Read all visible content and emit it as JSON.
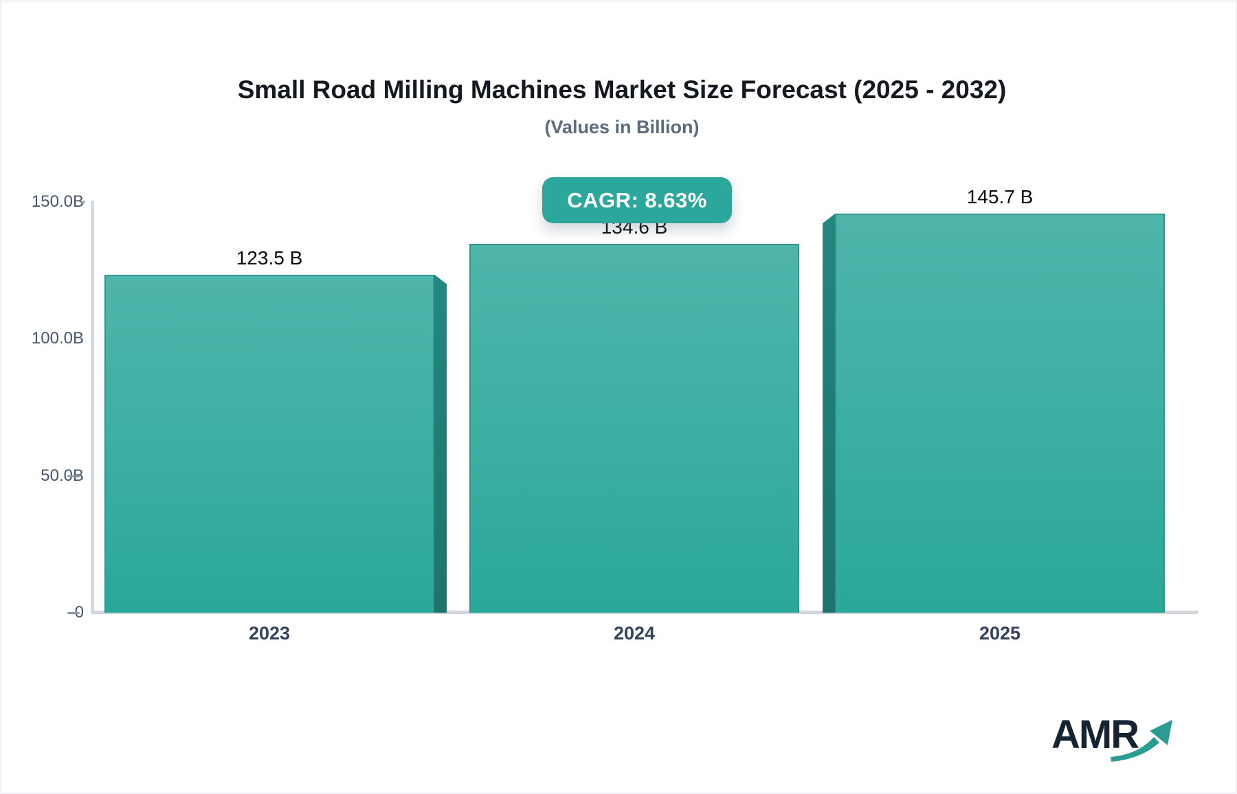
{
  "title": "Small Road Milling Machines Market Size Forecast (2025 - 2032)",
  "subtitle": "(Values in Billion)",
  "badge": {
    "label": "CAGR: 8.63%"
  },
  "logo": {
    "text": "AMR"
  },
  "chart_data": {
    "type": "bar",
    "title": "Small Road Milling Machines Market Size Forecast (2025 - 2032)",
    "subtitle": "(Values in Billion)",
    "categories": [
      "2023",
      "2024",
      "2025"
    ],
    "values": [
      123.5,
      134.6,
      145.7
    ],
    "value_labels": [
      "123.5 B",
      "134.6 B",
      "145.7 B"
    ],
    "cagr_label": "CAGR: 8.63%",
    "xlabel": "",
    "ylabel": "",
    "ylim": [
      0,
      150
    ],
    "yticks": [
      {
        "value": 150,
        "label": "150.0B",
        "tick": "dot"
      },
      {
        "value": 100,
        "label": "100.0B",
        "tick": "none"
      },
      {
        "value": 50,
        "label": "50.0B",
        "tick": "dash"
      },
      {
        "value": 0,
        "label": "0",
        "tick": "dash"
      }
    ],
    "grid": false,
    "legend": false,
    "bar_shading": [
      "right",
      "none",
      "left"
    ],
    "colors": {
      "bar_top": "#50b5ab",
      "bar_bottom": "#2aa89a",
      "bar_border": "#2e968d",
      "bar_side_top": "#238780",
      "bar_side_bottom": "#1d736d",
      "badge_bg": "#2ba79c",
      "badge_text": "#ffffff",
      "axis": "#d5d8de",
      "tick": "#8f99a6",
      "title": "#14181f",
      "subtitle": "#5a6b7c",
      "y_label": "#47566b",
      "x_label": "#34435a",
      "value_label": "#0b0b0b",
      "logo_text": "#152433",
      "logo_arrow": "#2b9c93"
    }
  }
}
